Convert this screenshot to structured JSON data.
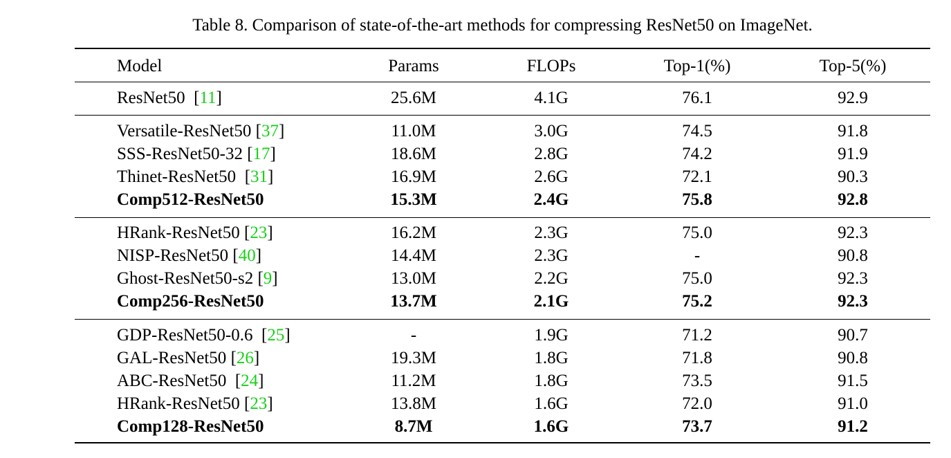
{
  "caption": "Table 8. Comparison of state-of-the-art methods for compressing ResNet50 on ImageNet.",
  "header": {
    "model": "Model",
    "params": "Params",
    "flops": "FLOPs",
    "top1": "Top-1(%)",
    "top5": "Top-5(%)"
  },
  "rows": [
    {
      "model": "ResNet50",
      "sep": "  ",
      "ref": "11",
      "params": "25.6M",
      "flops": "4.1G",
      "top1": "76.1",
      "top5": "92.9",
      "bold": false
    },
    {
      "model": "Versatile-ResNet50",
      "sep": " ",
      "ref": "37",
      "params": "11.0M",
      "flops": "3.0G",
      "top1": "74.5",
      "top5": "91.8",
      "bold": false
    },
    {
      "model": "SSS-ResNet50-32",
      "sep": " ",
      "ref": "17",
      "params": "18.6M",
      "flops": "2.8G",
      "top1": "74.2",
      "top5": "91.9",
      "bold": false
    },
    {
      "model": "Thinet-ResNet50",
      "sep": "  ",
      "ref": "31",
      "params": "16.9M",
      "flops": "2.6G",
      "top1": "72.1",
      "top5": "90.3",
      "bold": false
    },
    {
      "model": "Comp512-ResNet50",
      "sep": "",
      "ref": "",
      "params": "15.3M",
      "flops": "2.4G",
      "top1": "75.8",
      "top5": "92.8",
      "bold": true
    },
    {
      "model": "HRank-ResNet50",
      "sep": " ",
      "ref": "23",
      "params": "16.2M",
      "flops": "2.3G",
      "top1": "75.0",
      "top5": "92.3",
      "bold": false
    },
    {
      "model": "NISP-ResNet50",
      "sep": " ",
      "ref": "40",
      "params": "14.4M",
      "flops": "2.3G",
      "top1": "-",
      "top5": "90.8",
      "bold": false
    },
    {
      "model": "Ghost-ResNet50-s2",
      "sep": " ",
      "ref": "9",
      "params": "13.0M",
      "flops": "2.2G",
      "top1": "75.0",
      "top5": "92.3",
      "bold": false
    },
    {
      "model": "Comp256-ResNet50",
      "sep": "",
      "ref": "",
      "params": "13.7M",
      "flops": "2.1G",
      "top1": "75.2",
      "top5": "92.3",
      "bold": true
    },
    {
      "model": "GDP-ResNet50-0.6",
      "sep": "  ",
      "ref": "25",
      "params": "-",
      "flops": "1.9G",
      "top1": "71.2",
      "top5": "90.7",
      "bold": false
    },
    {
      "model": "GAL-ResNet50",
      "sep": " ",
      "ref": "26",
      "params": "19.3M",
      "flops": "1.8G",
      "top1": "71.8",
      "top5": "90.8",
      "bold": false
    },
    {
      "model": "ABC-ResNet50",
      "sep": "  ",
      "ref": "24",
      "params": "11.2M",
      "flops": "1.8G",
      "top1": "73.5",
      "top5": "91.5",
      "bold": false
    },
    {
      "model": "HRank-ResNet50",
      "sep": " ",
      "ref": "23",
      "params": "13.8M",
      "flops": "1.6G",
      "top1": "72.0",
      "top5": "91.0",
      "bold": false
    },
    {
      "model": "Comp128-ResNet50",
      "sep": "",
      "ref": "",
      "params": "8.7M",
      "flops": "1.6G",
      "top1": "73.7",
      "top5": "91.2",
      "bold": true
    }
  ],
  "colors": {
    "citation": "#17d117",
    "text": "#000000"
  }
}
